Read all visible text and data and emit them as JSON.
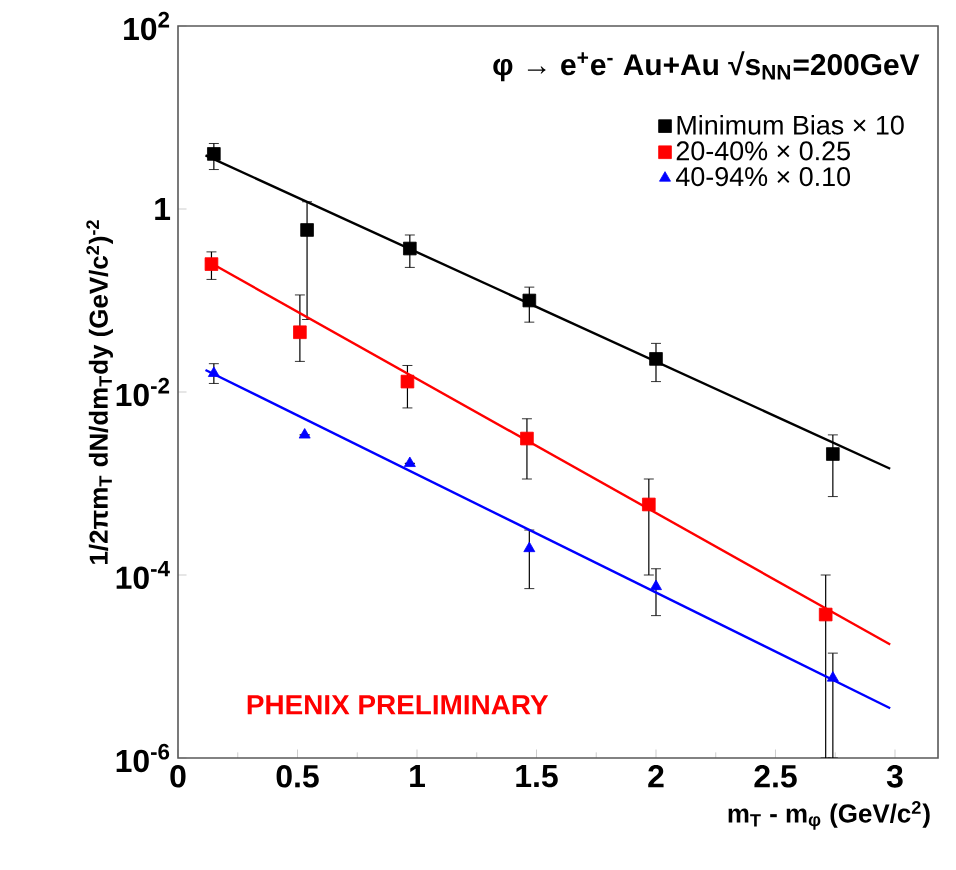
{
  "chart_data": {
    "type": "scatter",
    "title": "φ → e$^{+}$e$^{-}$ Au+Au √s$_{NN}$=200GeV",
    "xlabel": "m$_{T}$ - m$_{φ}$ (GeV/c$^{2}$)",
    "ylabel": "1/2πm$_{T}$ dN/dm$_{T}$dy (GeV/c$^{2}$)$^{-2}$",
    "log": "y",
    "xlim": [
      0,
      3.18
    ],
    "ylim": [
      1e-06,
      100
    ],
    "xticks": [
      0,
      0.5,
      1,
      1.5,
      2,
      2.5,
      3
    ],
    "yticks": [
      {
        "value": 1e-06,
        "label": "10$^{-6}$"
      },
      {
        "value": 0.0001,
        "label": "10$^{-4}$"
      },
      {
        "value": 0.01,
        "label": "10$^{-2}$"
      },
      1,
      {
        "value": 100,
        "label": "10$^{2}$"
      }
    ],
    "legend": "top right",
    "grid": false,
    "annotations": [
      "PHENIX PRELIMINARY"
    ],
    "series": [
      {
        "name": "Minimum Bias × 10",
        "marker": "square",
        "color": "#000000",
        "x": [
          0.15,
          0.54,
          0.97,
          1.47,
          2.0,
          2.74
        ],
        "values": [
          4.0,
          0.59,
          0.37,
          0.1,
          0.023,
          0.0021
        ],
        "errors": [
          [
            2.7,
            5.2
          ],
          [
            0.062,
            1.2
          ],
          [
            0.23,
            0.52
          ],
          [
            0.058,
            0.14
          ],
          [
            0.013,
            0.034
          ],
          [
            0.00072,
            0.0034
          ]
        ]
      },
      {
        "name": "20-40% × 0.25",
        "marker": "square",
        "color": "#ff0000",
        "x": [
          0.14,
          0.51,
          0.96,
          1.46,
          1.97,
          2.71
        ],
        "values": [
          0.25,
          0.045,
          0.013,
          0.0031,
          0.00059,
          3.7e-05
        ],
        "errors": [
          [
            0.17,
            0.34
          ],
          [
            0.0216,
            0.115
          ],
          [
            0.0067,
            0.0195
          ],
          [
            0.00112,
            0.0051
          ],
          [
            0.0001,
            0.00112
          ],
          [
            1e-06,
            0.0001
          ]
        ]
      },
      {
        "name": "40-94% × 0.10",
        "marker": "triangle",
        "color": "#0000ff",
        "x": [
          0.15,
          0.53,
          0.97,
          1.47,
          2.0,
          2.74
        ],
        "values": [
          0.016,
          0.0034,
          0.00166,
          0.000195,
          7.5e-05,
          7.5e-06
        ],
        "errors": [
          [
            0.0124,
            0.0204
          ],
          null,
          null,
          [
            7.1e-05,
            0.00031
          ],
          [
            3.6e-05,
            0.000117
          ],
          [
            1e-06,
            1.4e-05
          ]
        ]
      },
      {
        "type": "line",
        "color": "#000000",
        "x": [
          0.115,
          2.98
        ],
        "values": [
          3.85,
          0.00145
        ]
      },
      {
        "type": "line",
        "color": "#ff0000",
        "x": [
          0.115,
          2.98
        ],
        "values": [
          0.277,
          1.74e-05
        ]
      },
      {
        "type": "line",
        "color": "#0000ff",
        "x": [
          0.115,
          2.98
        ],
        "values": [
          0.0174,
          3.5e-06
        ]
      }
    ]
  }
}
